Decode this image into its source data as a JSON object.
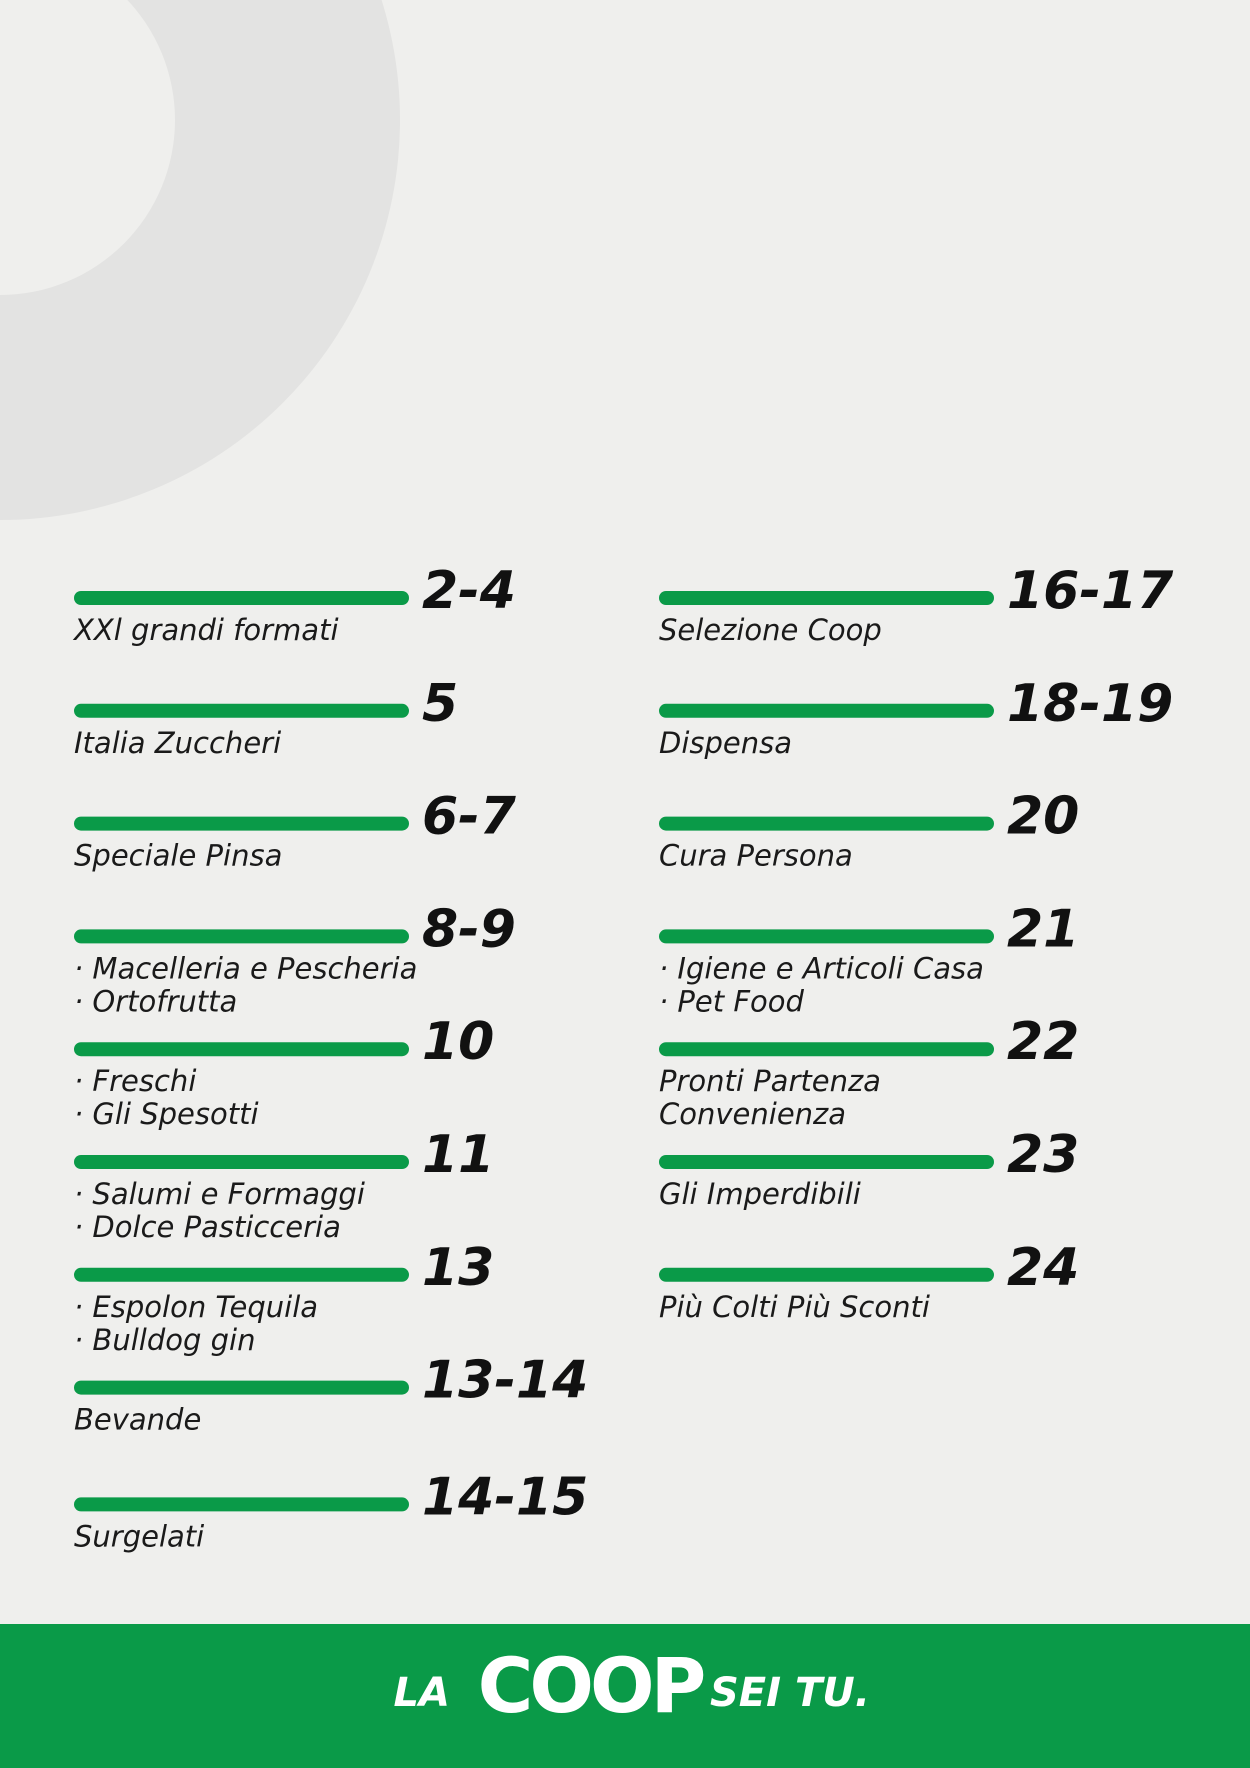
{
  "index": {
    "left": [
      {
        "pages": "2-4",
        "lines": [
          "XXl grandi formati"
        ]
      },
      {
        "pages": "5",
        "lines": [
          "Italia Zuccheri"
        ]
      },
      {
        "pages": "6-7",
        "lines": [
          "Speciale Pinsa"
        ]
      },
      {
        "pages": "8-9",
        "lines": [
          "· Macelleria e Pescheria",
          "· Ortofrutta"
        ]
      },
      {
        "pages": "10",
        "lines": [
          "· Freschi",
          "· Gli Spesotti"
        ]
      },
      {
        "pages": "11",
        "lines": [
          "· Salumi e Formaggi",
          "· Dolce Pasticceria"
        ]
      },
      {
        "pages": "13",
        "lines": [
          "· Espolon Tequila",
          "· Bulldog gin"
        ]
      },
      {
        "pages": "13-14",
        "lines": [
          "Bevande"
        ]
      },
      {
        "pages": "14-15",
        "lines": [
          "Surgelati"
        ]
      }
    ],
    "right": [
      {
        "pages": "16-17",
        "lines": [
          "Selezione Coop"
        ]
      },
      {
        "pages": "18-19",
        "lines": [
          "Dispensa"
        ]
      },
      {
        "pages": "20",
        "lines": [
          "Cura Persona"
        ]
      },
      {
        "pages": "21",
        "lines": [
          "· Igiene e Articoli Casa",
          "· Pet Food"
        ]
      },
      {
        "pages": "22",
        "lines": [
          "Pronti Partenza",
          "Convenienza"
        ]
      },
      {
        "pages": "23",
        "lines": [
          "Gli Imperdibili"
        ]
      },
      {
        "pages": "24",
        "lines": [
          "Più Colti Più Sconti"
        ]
      }
    ]
  },
  "footer": {
    "left": "LA",
    "logo": "COOP",
    "right": "SEI TU."
  }
}
